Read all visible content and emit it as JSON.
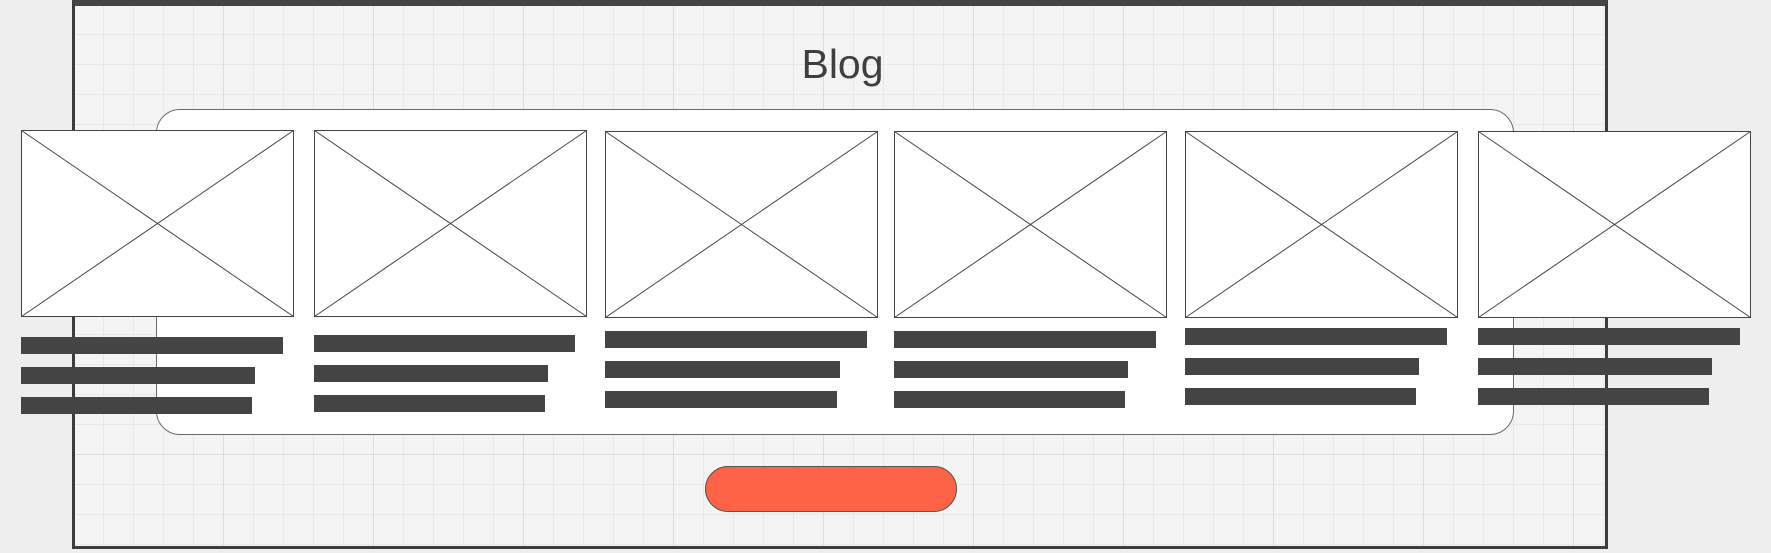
{
  "page": {
    "title": "Blog"
  },
  "posts": [
    {
      "image": "image-placeholder-icon",
      "text_lines": 3
    },
    {
      "image": "image-placeholder-icon",
      "text_lines": 3
    },
    {
      "image": "image-placeholder-icon",
      "text_lines": 3
    },
    {
      "image": "image-placeholder-icon",
      "text_lines": 3
    },
    {
      "image": "image-placeholder-icon",
      "text_lines": 3
    },
    {
      "image": "image-placeholder-icon",
      "text_lines": 3
    }
  ],
  "cta": {
    "label": ""
  },
  "colors": {
    "background": "#eeeeee",
    "frame_border": "#3c3c3c",
    "text_bar": "#444444",
    "button": "#ff6347",
    "title": "#3f3f3f"
  }
}
